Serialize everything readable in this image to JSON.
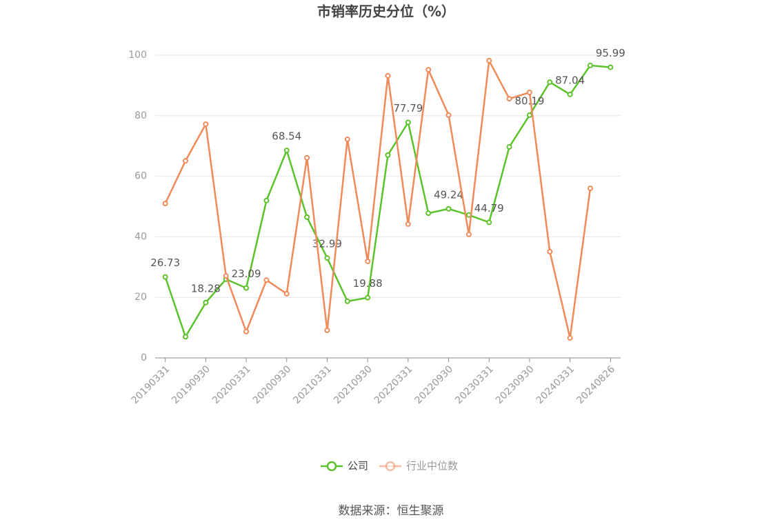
{
  "chart_data": {
    "type": "line",
    "title": "市销率历史分位（%）",
    "source": "数据来源：恒生聚源",
    "categories": [
      "20190331",
      null,
      "20190930",
      null,
      "20200331",
      null,
      "20200930",
      null,
      "20210331",
      null,
      "20210930",
      null,
      "20220331",
      null,
      "20220930",
      null,
      "20230331",
      null,
      "20230930",
      null,
      "20240331",
      null,
      "20240826"
    ],
    "series": [
      {
        "name": "公司",
        "color": "#5cc22a",
        "values": [
          26.73,
          7,
          18.28,
          26,
          23.09,
          52,
          68.54,
          46.5,
          32.99,
          18.7,
          19.88,
          67,
          77.79,
          47.8,
          49.24,
          47.2,
          44.79,
          69.7,
          80.19,
          91.1,
          87.04,
          96.6,
          95.99
        ]
      },
      {
        "name": "行业中位数",
        "color": "#f08a5a",
        "values": [
          51,
          65.1,
          77.2,
          27.1,
          8.7,
          25.7,
          21.2,
          66.1,
          9.1,
          72.2,
          31.9,
          93.2,
          44.2,
          95.2,
          80.2,
          40.8,
          98.2,
          85.6,
          87.7,
          35.1,
          6.6,
          56,
          null
        ]
      }
    ],
    "ylim": [
      0,
      100
    ],
    "yticks": [
      0,
      20,
      40,
      60,
      80,
      100
    ],
    "grid": true
  }
}
